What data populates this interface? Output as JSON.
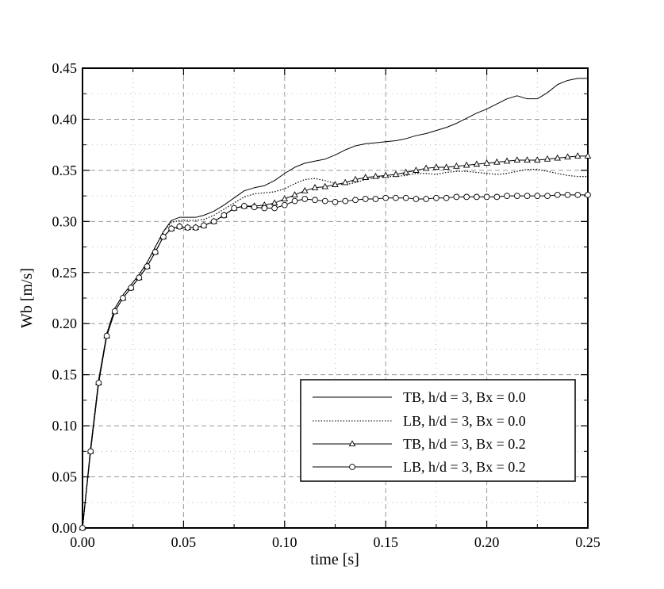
{
  "chart_data": {
    "type": "line",
    "title": "",
    "xlabel": "time [s]",
    "ylabel": "Wb [m/s]",
    "xlim": [
      0.0,
      0.25
    ],
    "ylim": [
      0.0,
      0.45
    ],
    "xticks": [
      0.0,
      0.05,
      0.1,
      0.15,
      0.2,
      0.25
    ],
    "xtick_labels": [
      "0.00",
      "0.05",
      "0.10",
      "0.15",
      "0.20",
      "0.25"
    ],
    "yticks": [
      0.0,
      0.05,
      0.1,
      0.15,
      0.2,
      0.25,
      0.3,
      0.35,
      0.4,
      0.45
    ],
    "ytick_labels": [
      "0.00",
      "0.05",
      "0.10",
      "0.15",
      "0.20",
      "0.25",
      "0.30",
      "0.35",
      "0.40",
      "0.45"
    ],
    "grid": true,
    "legend_position": "lower-right",
    "series": [
      {
        "name": "TB, h/d = 3, Bx = 0.0",
        "style": "solid",
        "marker": "none",
        "x": [
          0,
          0.004,
          0.008,
          0.012,
          0.016,
          0.02,
          0.024,
          0.028,
          0.032,
          0.036,
          0.04,
          0.044,
          0.048,
          0.052,
          0.056,
          0.06,
          0.065,
          0.07,
          0.075,
          0.08,
          0.085,
          0.09,
          0.095,
          0.1,
          0.105,
          0.11,
          0.115,
          0.12,
          0.125,
          0.13,
          0.135,
          0.14,
          0.145,
          0.15,
          0.155,
          0.16,
          0.165,
          0.17,
          0.175,
          0.18,
          0.185,
          0.19,
          0.195,
          0.2,
          0.205,
          0.21,
          0.215,
          0.22,
          0.225,
          0.23,
          0.235,
          0.24,
          0.245,
          0.25
        ],
        "y": [
          0,
          0.078,
          0.145,
          0.19,
          0.215,
          0.228,
          0.238,
          0.248,
          0.26,
          0.275,
          0.29,
          0.301,
          0.304,
          0.304,
          0.304,
          0.306,
          0.31,
          0.316,
          0.323,
          0.33,
          0.333,
          0.335,
          0.34,
          0.347,
          0.353,
          0.357,
          0.359,
          0.361,
          0.365,
          0.37,
          0.374,
          0.376,
          0.377,
          0.378,
          0.379,
          0.381,
          0.384,
          0.386,
          0.389,
          0.392,
          0.396,
          0.401,
          0.406,
          0.41,
          0.415,
          0.42,
          0.423,
          0.42,
          0.42,
          0.426,
          0.434,
          0.438,
          0.44,
          0.44
        ]
      },
      {
        "name": "LB, h/d = 3, Bx = 0.0",
        "style": "dotted",
        "marker": "none",
        "x": [
          0,
          0.004,
          0.008,
          0.012,
          0.016,
          0.02,
          0.024,
          0.028,
          0.032,
          0.036,
          0.04,
          0.044,
          0.048,
          0.052,
          0.056,
          0.06,
          0.065,
          0.07,
          0.075,
          0.08,
          0.085,
          0.09,
          0.095,
          0.1,
          0.105,
          0.11,
          0.115,
          0.12,
          0.125,
          0.13,
          0.135,
          0.14,
          0.145,
          0.15,
          0.155,
          0.16,
          0.165,
          0.17,
          0.175,
          0.18,
          0.185,
          0.19,
          0.195,
          0.2,
          0.205,
          0.21,
          0.215,
          0.22,
          0.225,
          0.23,
          0.235,
          0.24,
          0.245,
          0.25
        ],
        "y": [
          0,
          0.078,
          0.145,
          0.19,
          0.215,
          0.228,
          0.238,
          0.248,
          0.26,
          0.275,
          0.29,
          0.299,
          0.301,
          0.301,
          0.301,
          0.302,
          0.306,
          0.312,
          0.318,
          0.324,
          0.327,
          0.328,
          0.329,
          0.332,
          0.337,
          0.341,
          0.342,
          0.34,
          0.337,
          0.336,
          0.338,
          0.341,
          0.343,
          0.344,
          0.344,
          0.345,
          0.347,
          0.347,
          0.346,
          0.348,
          0.349,
          0.349,
          0.348,
          0.347,
          0.346,
          0.347,
          0.349,
          0.351,
          0.351,
          0.349,
          0.347,
          0.345,
          0.344,
          0.344
        ]
      },
      {
        "name": "TB, h/d = 3, Bx = 0.2",
        "style": "solid",
        "marker": "triangle",
        "x": [
          0,
          0.004,
          0.008,
          0.012,
          0.016,
          0.02,
          0.024,
          0.028,
          0.032,
          0.036,
          0.04,
          0.044,
          0.048,
          0.052,
          0.056,
          0.06,
          0.065,
          0.07,
          0.075,
          0.08,
          0.085,
          0.09,
          0.095,
          0.1,
          0.105,
          0.11,
          0.115,
          0.12,
          0.125,
          0.13,
          0.135,
          0.14,
          0.145,
          0.15,
          0.155,
          0.16,
          0.165,
          0.17,
          0.175,
          0.18,
          0.185,
          0.19,
          0.195,
          0.2,
          0.205,
          0.21,
          0.215,
          0.22,
          0.225,
          0.23,
          0.235,
          0.24,
          0.245,
          0.25
        ],
        "y": [
          0,
          0.075,
          0.142,
          0.188,
          0.212,
          0.225,
          0.235,
          0.245,
          0.256,
          0.27,
          0.285,
          0.293,
          0.295,
          0.294,
          0.294,
          0.296,
          0.3,
          0.306,
          0.313,
          0.315,
          0.315,
          0.316,
          0.318,
          0.322,
          0.326,
          0.33,
          0.333,
          0.334,
          0.336,
          0.338,
          0.341,
          0.343,
          0.344,
          0.345,
          0.346,
          0.348,
          0.35,
          0.352,
          0.353,
          0.353,
          0.354,
          0.355,
          0.356,
          0.357,
          0.358,
          0.359,
          0.36,
          0.36,
          0.36,
          0.361,
          0.362,
          0.363,
          0.364,
          0.364
        ]
      },
      {
        "name": "LB, h/d = 3, Bx = 0.2",
        "style": "solid",
        "marker": "square",
        "x": [
          0,
          0.004,
          0.008,
          0.012,
          0.016,
          0.02,
          0.024,
          0.028,
          0.032,
          0.036,
          0.04,
          0.044,
          0.048,
          0.052,
          0.056,
          0.06,
          0.065,
          0.07,
          0.075,
          0.08,
          0.085,
          0.09,
          0.095,
          0.1,
          0.105,
          0.11,
          0.115,
          0.12,
          0.125,
          0.13,
          0.135,
          0.14,
          0.145,
          0.15,
          0.155,
          0.16,
          0.165,
          0.17,
          0.175,
          0.18,
          0.185,
          0.19,
          0.195,
          0.2,
          0.205,
          0.21,
          0.215,
          0.22,
          0.225,
          0.23,
          0.235,
          0.24,
          0.245,
          0.25
        ],
        "y": [
          0,
          0.075,
          0.142,
          0.188,
          0.212,
          0.225,
          0.235,
          0.245,
          0.256,
          0.27,
          0.285,
          0.293,
          0.295,
          0.294,
          0.294,
          0.296,
          0.3,
          0.306,
          0.313,
          0.315,
          0.314,
          0.313,
          0.313,
          0.316,
          0.32,
          0.322,
          0.321,
          0.32,
          0.319,
          0.32,
          0.321,
          0.322,
          0.322,
          0.323,
          0.323,
          0.323,
          0.322,
          0.322,
          0.323,
          0.323,
          0.324,
          0.324,
          0.324,
          0.324,
          0.324,
          0.325,
          0.325,
          0.325,
          0.325,
          0.325,
          0.326,
          0.326,
          0.326,
          0.326
        ]
      }
    ]
  }
}
